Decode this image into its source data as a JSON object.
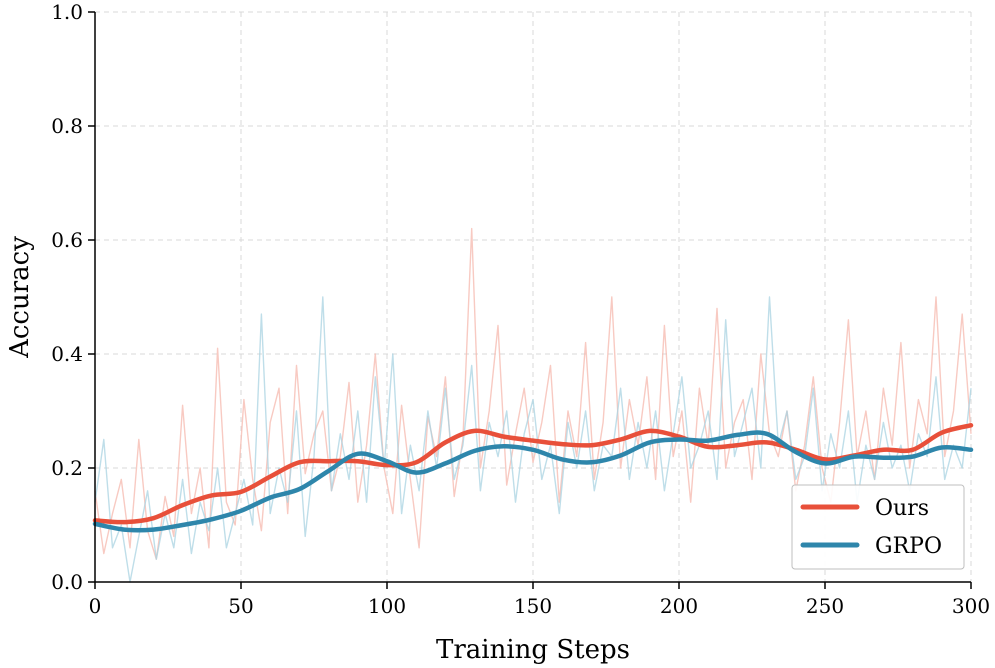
{
  "chart_data": {
    "type": "line",
    "title": "",
    "xlabel": "Training Steps",
    "ylabel": "Accuracy",
    "xlim": [
      0,
      300
    ],
    "ylim": [
      0.0,
      1.0
    ],
    "xticks": [
      0,
      50,
      100,
      150,
      200,
      250,
      300
    ],
    "xtick_labels": [
      "0",
      "50",
      "100",
      "150",
      "200",
      "250",
      "300"
    ],
    "yticks": [
      0.0,
      0.2,
      0.4,
      0.6,
      0.8,
      1.0
    ],
    "ytick_labels": [
      "0.0",
      "0.2",
      "0.4",
      "0.6",
      "0.8",
      "1.0"
    ],
    "grid": true,
    "legend_position": "bottom-right",
    "series": [
      {
        "name": "Ours",
        "color": "#e8503a",
        "raw_color": "#f6b8ae",
        "smoothed": {
          "x": [
            0,
            10,
            20,
            30,
            40,
            50,
            60,
            70,
            80,
            90,
            100,
            110,
            120,
            130,
            140,
            150,
            160,
            170,
            180,
            190,
            200,
            210,
            220,
            230,
            240,
            250,
            260,
            270,
            280,
            290,
            300
          ],
          "y": [
            0.108,
            0.105,
            0.112,
            0.135,
            0.152,
            0.158,
            0.185,
            0.21,
            0.212,
            0.212,
            0.205,
            0.21,
            0.245,
            0.265,
            0.255,
            0.248,
            0.242,
            0.24,
            0.25,
            0.265,
            0.255,
            0.237,
            0.24,
            0.245,
            0.232,
            0.215,
            0.222,
            0.232,
            0.232,
            0.262,
            0.275
          ]
        },
        "raw": {
          "x": [
            0,
            3,
            6,
            9,
            12,
            15,
            18,
            21,
            24,
            27,
            30,
            33,
            36,
            39,
            42,
            45,
            48,
            51,
            54,
            57,
            60,
            63,
            66,
            69,
            72,
            75,
            78,
            81,
            84,
            87,
            90,
            93,
            96,
            99,
            102,
            105,
            108,
            111,
            114,
            117,
            120,
            123,
            126,
            129,
            132,
            135,
            138,
            141,
            144,
            147,
            150,
            153,
            156,
            159,
            162,
            165,
            168,
            171,
            174,
            177,
            180,
            183,
            186,
            189,
            192,
            195,
            198,
            201,
            204,
            207,
            210,
            213,
            216,
            219,
            222,
            225,
            228,
            231,
            234,
            237,
            240,
            243,
            246,
            249,
            252,
            255,
            258,
            261,
            264,
            267,
            270,
            273,
            276,
            279,
            282,
            285,
            288,
            291,
            294,
            297,
            300
          ],
          "y": [
            0.16,
            0.05,
            0.12,
            0.18,
            0.06,
            0.25,
            0.09,
            0.04,
            0.15,
            0.08,
            0.31,
            0.12,
            0.2,
            0.06,
            0.41,
            0.14,
            0.1,
            0.32,
            0.18,
            0.09,
            0.28,
            0.34,
            0.12,
            0.38,
            0.19,
            0.26,
            0.3,
            0.16,
            0.22,
            0.35,
            0.14,
            0.24,
            0.4,
            0.2,
            0.12,
            0.31,
            0.18,
            0.06,
            0.29,
            0.22,
            0.36,
            0.15,
            0.25,
            0.62,
            0.2,
            0.3,
            0.45,
            0.17,
            0.26,
            0.34,
            0.21,
            0.28,
            0.38,
            0.14,
            0.3,
            0.22,
            0.42,
            0.18,
            0.28,
            0.5,
            0.2,
            0.32,
            0.24,
            0.36,
            0.18,
            0.45,
            0.22,
            0.3,
            0.14,
            0.34,
            0.24,
            0.48,
            0.2,
            0.28,
            0.32,
            0.18,
            0.4,
            0.26,
            0.22,
            0.3,
            0.16,
            0.24,
            0.36,
            0.2,
            0.14,
            0.28,
            0.46,
            0.22,
            0.3,
            0.18,
            0.34,
            0.24,
            0.42,
            0.2,
            0.32,
            0.26,
            0.5,
            0.22,
            0.3,
            0.47,
            0.26
          ]
        }
      },
      {
        "name": "GRPO",
        "color": "#2e86ab",
        "raw_color": "#a9d3e2",
        "smoothed": {
          "x": [
            0,
            10,
            20,
            30,
            40,
            50,
            60,
            70,
            80,
            90,
            100,
            110,
            120,
            130,
            140,
            150,
            160,
            170,
            180,
            190,
            200,
            210,
            220,
            230,
            240,
            250,
            260,
            270,
            280,
            290,
            300
          ],
          "y": [
            0.102,
            0.092,
            0.092,
            0.1,
            0.11,
            0.125,
            0.148,
            0.163,
            0.195,
            0.225,
            0.212,
            0.192,
            0.208,
            0.23,
            0.238,
            0.232,
            0.215,
            0.21,
            0.222,
            0.245,
            0.25,
            0.248,
            0.258,
            0.26,
            0.228,
            0.208,
            0.22,
            0.218,
            0.22,
            0.236,
            0.232
          ]
        },
        "raw": {
          "x": [
            0,
            3,
            6,
            9,
            12,
            15,
            18,
            21,
            24,
            27,
            30,
            33,
            36,
            39,
            42,
            45,
            48,
            51,
            54,
            57,
            60,
            63,
            66,
            69,
            72,
            75,
            78,
            81,
            84,
            87,
            90,
            93,
            96,
            99,
            102,
            105,
            108,
            111,
            114,
            117,
            120,
            123,
            126,
            129,
            132,
            135,
            138,
            141,
            144,
            147,
            150,
            153,
            156,
            159,
            162,
            165,
            168,
            171,
            174,
            177,
            180,
            183,
            186,
            189,
            192,
            195,
            198,
            201,
            204,
            207,
            210,
            213,
            216,
            219,
            222,
            225,
            228,
            231,
            234,
            237,
            240,
            243,
            246,
            249,
            252,
            255,
            258,
            261,
            264,
            267,
            270,
            273,
            276,
            279,
            282,
            285,
            288,
            291,
            294,
            297,
            300
          ],
          "y": [
            0.14,
            0.25,
            0.06,
            0.1,
            0.0,
            0.08,
            0.16,
            0.04,
            0.12,
            0.06,
            0.18,
            0.05,
            0.14,
            0.09,
            0.2,
            0.06,
            0.12,
            0.18,
            0.1,
            0.47,
            0.12,
            0.2,
            0.14,
            0.3,
            0.08,
            0.22,
            0.5,
            0.16,
            0.26,
            0.18,
            0.3,
            0.14,
            0.36,
            0.2,
            0.4,
            0.12,
            0.24,
            0.16,
            0.3,
            0.2,
            0.34,
            0.18,
            0.24,
            0.38,
            0.16,
            0.28,
            0.22,
            0.3,
            0.14,
            0.26,
            0.32,
            0.18,
            0.24,
            0.12,
            0.28,
            0.2,
            0.3,
            0.16,
            0.24,
            0.22,
            0.34,
            0.18,
            0.28,
            0.2,
            0.3,
            0.16,
            0.26,
            0.36,
            0.2,
            0.24,
            0.3,
            0.18,
            0.46,
            0.22,
            0.28,
            0.34,
            0.2,
            0.5,
            0.24,
            0.3,
            0.18,
            0.22,
            0.34,
            0.16,
            0.26,
            0.2,
            0.3,
            0.14,
            0.24,
            0.18,
            0.28,
            0.2,
            0.24,
            0.16,
            0.26,
            0.22,
            0.36,
            0.18,
            0.24,
            0.2,
            0.34
          ]
        }
      }
    ]
  }
}
